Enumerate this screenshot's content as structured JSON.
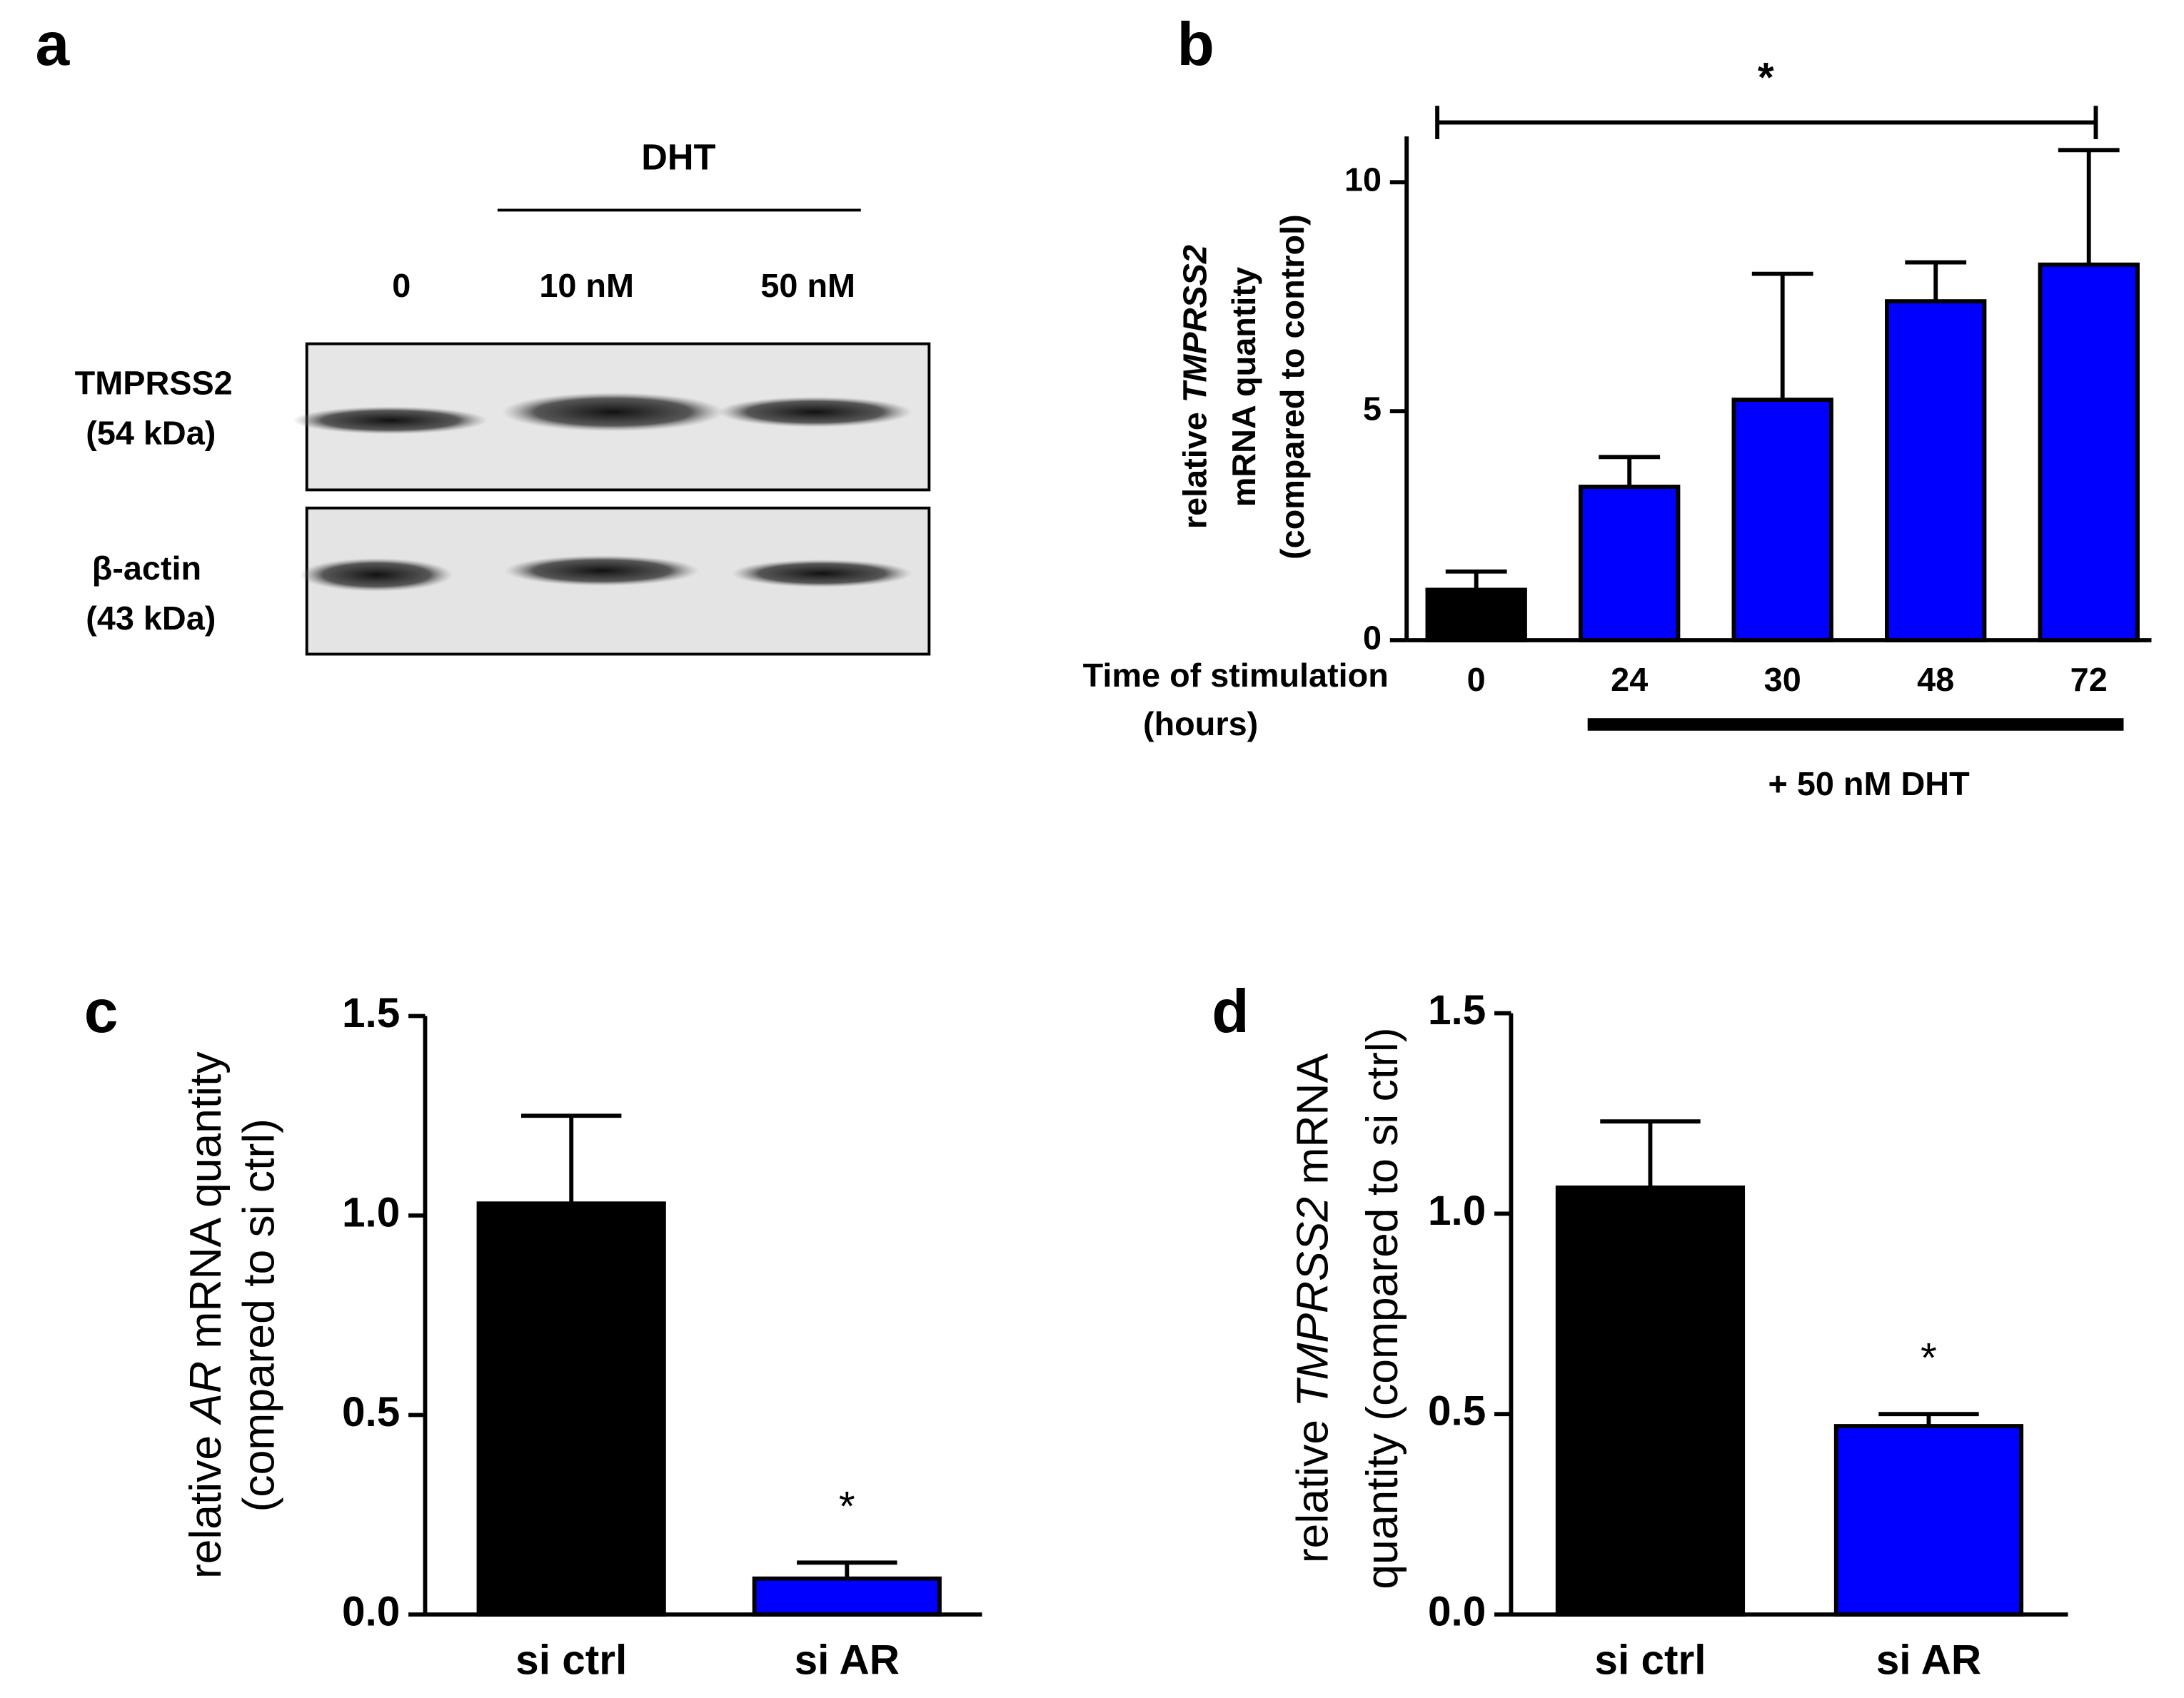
{
  "blot": {
    "label": "a",
    "treatment": "DHT",
    "lanes": [
      "0",
      "10 nM",
      "50 nM"
    ],
    "rows": [
      {
        "name": "TMPRSS2",
        "size": "(54 kDa)"
      },
      {
        "name": "β-actin",
        "size": "(43 kDa)"
      }
    ]
  },
  "chart_data": [
    {
      "type": "bar",
      "label": "b",
      "ylabel": {
        "lines": [
          [
            "relative ",
            "TMPRSS2"
          ],
          [
            "mRNA quantity"
          ],
          [
            "(compared to control)"
          ]
        ],
        "italic": "TMPRSS2"
      },
      "xlabel": [
        "Time of stimulation",
        "(hours)"
      ],
      "categories": [
        "0",
        "24",
        "30",
        "48",
        "72"
      ],
      "values": [
        1.1,
        3.35,
        5.25,
        7.4,
        8.2
      ],
      "errors": [
        0.4,
        0.65,
        2.75,
        0.85,
        2.5
      ],
      "colors": [
        "#000000",
        "#0000ff",
        "#0000ff",
        "#0000ff",
        "#0000ff"
      ],
      "ylim": [
        0,
        11
      ],
      "yticks": [
        0,
        5,
        10
      ],
      "significance": "*",
      "treatment": "+ 50 nM DHT"
    },
    {
      "type": "bar",
      "label": "c",
      "ylabel": {
        "lines": [
          [
            "relative ",
            "AR",
            " mRNA quantity"
          ],
          [
            "(compared to si ctrl)"
          ]
        ],
        "italic": "AR"
      },
      "categories": [
        "si ctrl",
        "si AR"
      ],
      "values": [
        1.03,
        0.09
      ],
      "errors": [
        0.22,
        0.04
      ],
      "colors": [
        "#000000",
        "#0000ff"
      ],
      "ylim": [
        0,
        1.5
      ],
      "yticks": [
        {
          "value": 0,
          "label": "0.0"
        },
        {
          "value": 0.5,
          "label": "0.5"
        },
        {
          "value": 1,
          "label": "1.0"
        },
        {
          "value": 1.5,
          "label": "1.5"
        }
      ],
      "significance": "*"
    },
    {
      "type": "bar",
      "label": "d",
      "ylabel": {
        "lines": [
          [
            "relative ",
            "TMPRSS2",
            " mRNA"
          ],
          [
            "quantity (compared to si ctrl)"
          ]
        ],
        "italic": "TMPRSS2"
      },
      "categories": [
        "si ctrl",
        "si AR"
      ],
      "values": [
        1.065,
        0.47
      ],
      "errors": [
        0.165,
        0.03
      ],
      "colors": [
        "#000000",
        "#0000ff"
      ],
      "ylim": [
        0,
        1.5
      ],
      "yticks": [
        {
          "value": 0,
          "label": "0.0"
        },
        {
          "value": 0.5,
          "label": "0.5"
        },
        {
          "value": 1,
          "label": "1.0"
        },
        {
          "value": 1.5,
          "label": "1.5"
        }
      ],
      "significance": "*"
    }
  ]
}
